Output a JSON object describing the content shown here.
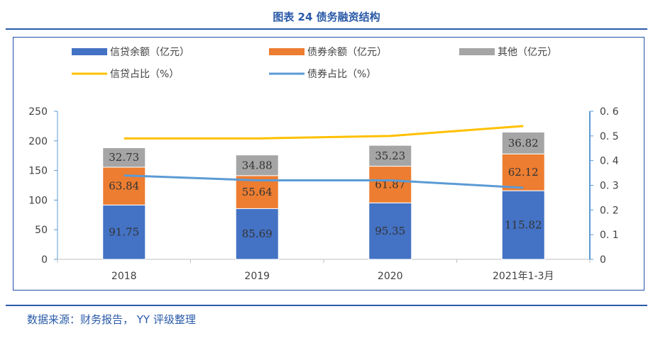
{
  "header": {
    "title": "图表 24 债务融资结构"
  },
  "footer": {
    "source": "数据来源：财务报告， YY 评级整理"
  },
  "chart_data": {
    "type": "bar",
    "stacked": true,
    "categories": [
      "2018",
      "2019",
      "2020",
      "2021年1-3月"
    ],
    "series": [
      {
        "name": "信贷余额（亿元）",
        "kind": "bar",
        "axis": "left",
        "color": "#4472c4",
        "values": [
          91.75,
          85.69,
          95.35,
          115.82
        ]
      },
      {
        "name": "债券余额（亿元）",
        "kind": "bar",
        "axis": "left",
        "color": "#ed7d31",
        "values": [
          63.84,
          55.64,
          61.87,
          62.12
        ]
      },
      {
        "name": "其他（亿元）",
        "kind": "bar",
        "axis": "left",
        "color": "#a5a5a5",
        "values": [
          32.73,
          34.88,
          35.23,
          36.82
        ]
      },
      {
        "name": "信贷占比（%）",
        "kind": "line",
        "axis": "right",
        "color": "#ffc000",
        "values": [
          0.49,
          0.49,
          0.5,
          0.54
        ]
      },
      {
        "name": "债券占比（%）",
        "kind": "line",
        "axis": "right",
        "color": "#5b9bd5",
        "values": [
          0.34,
          0.32,
          0.32,
          0.29
        ]
      }
    ],
    "y_left": {
      "ticks": [
        "0",
        "50",
        "100",
        "150",
        "200",
        "250"
      ],
      "ylim": [
        0,
        250
      ]
    },
    "y_right": {
      "ticks": [
        "0",
        "0. 1",
        "0. 2",
        "0. 3",
        "0. 4",
        "0. 5",
        "0. 6"
      ],
      "ylim": [
        0,
        0.6
      ]
    },
    "legend_position": "top",
    "grid": false
  }
}
